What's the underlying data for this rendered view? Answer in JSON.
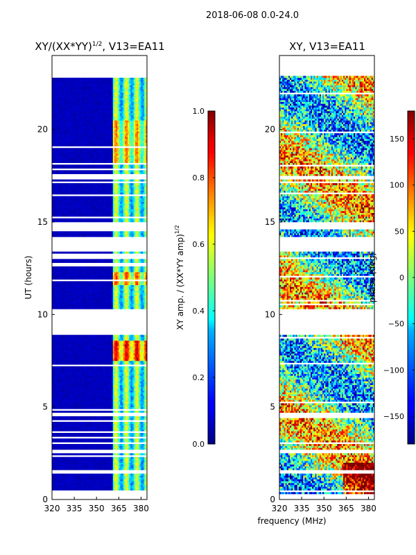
{
  "figure_title": "2018-06-08 0.0-24.0",
  "shared_xlabel": "frequency (MHz)",
  "chart_data": [
    {
      "type": "heatmap",
      "panel": "left",
      "title_prefix": "XY/(XX*YY)",
      "title_exponent": "1/2",
      "title_suffix": ", V13=EA11",
      "xlabel": "frequency (MHz)",
      "ylabel": "UT (hours)",
      "xlim": [
        320,
        384
      ],
      "ylim": [
        0,
        24
      ],
      "xticks": [
        320,
        335,
        350,
        365,
        380
      ],
      "yticks": [
        0,
        5,
        10,
        15,
        20
      ],
      "colorbar": {
        "label": "XY amp. / (XX*YY amp)",
        "label_exponent": "1/2",
        "range": [
          0.0,
          1.0
        ],
        "ticks": [
          0.0,
          0.2,
          0.4,
          0.6,
          0.8,
          1.0
        ],
        "tick_labels": [
          "0.0",
          "0.2",
          "0.4",
          "0.6",
          "0.8",
          "1.0"
        ],
        "colormap": "jet"
      },
      "description_of_values": "Mostly low amplitude (~0.05) below ~361 MHz; elevated amplitude (0.3-0.9) in narrow channels between ~362 and 382 MHz, strongest near UT 7.5-8.5 h"
    },
    {
      "type": "heatmap",
      "panel": "right",
      "title": "XY, V13=EA11",
      "xlabel": "frequency (MHz)",
      "ylabel": "",
      "xlim": [
        320,
        384
      ],
      "ylim": [
        0,
        24
      ],
      "xticks": [
        320,
        335,
        350,
        365,
        380
      ],
      "yticks": [
        0,
        5,
        10,
        15,
        20
      ],
      "colorbar": {
        "label": "phase (deg)",
        "range": [
          -180,
          180
        ],
        "ticks": [
          -150,
          -100,
          -50,
          0,
          50,
          100,
          150
        ],
        "tick_labels": [
          "−150",
          "−100",
          "−50",
          "0",
          "50",
          "100",
          "150"
        ],
        "colormap": "jet"
      },
      "description_of_values": "XY phase in degrees, broadly varying between -180 and 180 with time-dependent structure"
    }
  ],
  "data_gaps_hours": [
    [
      0.45,
      0.55
    ],
    [
      1.42,
      1.58
    ],
    [
      2.55,
      2.72
    ],
    [
      3.02,
      3.12
    ],
    [
      4.5,
      4.7
    ],
    [
      8.95,
      10.3
    ],
    [
      13.02,
      13.12
    ],
    [
      13.45,
      14.2
    ],
    [
      14.65,
      15.0
    ],
    [
      17.1,
      17.25
    ],
    [
      17.3,
      17.55
    ],
    [
      22.9,
      23.1
    ]
  ]
}
